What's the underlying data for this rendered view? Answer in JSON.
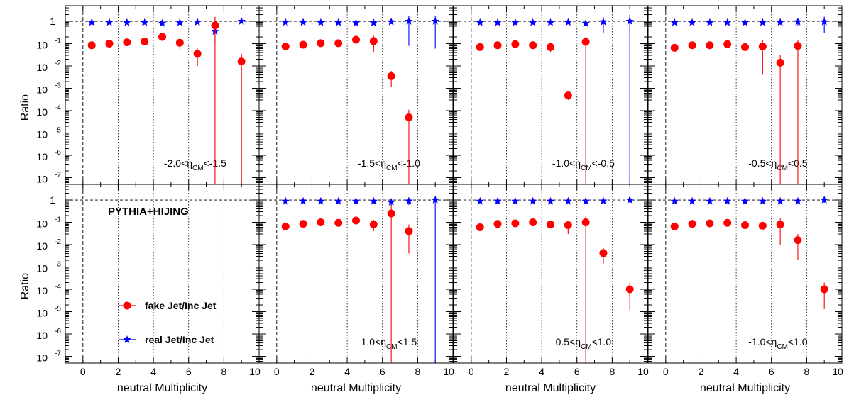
{
  "chart_data": {
    "type": "scatter",
    "figure_label": "PYTHIA+HIJING",
    "ylabel": "Ratio",
    "xlabel": "neutral Multiplicity",
    "xlim": [
      -1,
      10
    ],
    "ylim": [
      5e-08,
      5
    ],
    "yscale": "log",
    "unity_line": 1,
    "x_ticks": [
      0,
      2,
      4,
      6,
      8,
      10
    ],
    "x_tick_labels": [
      "0",
      "2",
      "4",
      "6",
      "8",
      "10"
    ],
    "y_ticks": [
      1,
      0.1,
      0.01,
      0.001,
      0.0001,
      1e-05,
      1e-06,
      1e-07
    ],
    "y_tick_labels": [
      {
        "base": "1",
        "exp": ""
      },
      {
        "base": "10",
        "exp": "-1"
      },
      {
        "base": "10",
        "exp": "-2"
      },
      {
        "base": "10",
        "exp": "-3"
      },
      {
        "base": "10",
        "exp": "-4"
      },
      {
        "base": "10",
        "exp": "-5"
      },
      {
        "base": "10",
        "exp": "-6"
      },
      {
        "base": "10",
        "exp": "-7"
      }
    ],
    "legend": [
      {
        "label": "fake Jet/Inc Jet",
        "color": "#ff0000",
        "marker": "circle"
      },
      {
        "label": "real Jet/Inc Jet",
        "color": "#0000ff",
        "marker": "star"
      }
    ],
    "panels": [
      {
        "label": {
          "pre": "-2.0<η",
          "sub": "CM",
          "post": "<-1.5"
        },
        "fake": [
          {
            "x": 0.5,
            "y": 0.085,
            "lo": 0.07,
            "hi": 0.1
          },
          {
            "x": 1.5,
            "y": 0.1,
            "lo": 0.085,
            "hi": 0.12
          },
          {
            "x": 2.5,
            "y": 0.115,
            "lo": 0.1,
            "hi": 0.135
          },
          {
            "x": 3.5,
            "y": 0.125,
            "lo": 0.105,
            "hi": 0.15
          },
          {
            "x": 4.5,
            "y": 0.2,
            "lo": 0.16,
            "hi": 0.25
          },
          {
            "x": 5.5,
            "y": 0.11,
            "lo": 0.05,
            "hi": 0.17
          },
          {
            "x": 6.5,
            "y": 0.035,
            "lo": 0.01,
            "hi": 0.06
          },
          {
            "x": 7.5,
            "y": 0.65,
            "lo": 5e-08,
            "hi": 1.6
          },
          {
            "x": 9.0,
            "y": 0.016,
            "lo": 5e-08,
            "hi": 0.035
          }
        ],
        "real": [
          {
            "x": 0.5,
            "y": 0.9,
            "lo": 0.75,
            "hi": 1.05
          },
          {
            "x": 1.5,
            "y": 0.9,
            "lo": 0.75,
            "hi": 1.05
          },
          {
            "x": 2.5,
            "y": 0.88,
            "lo": 0.75,
            "hi": 1.02
          },
          {
            "x": 3.5,
            "y": 0.88,
            "lo": 0.75,
            "hi": 1.02
          },
          {
            "x": 4.5,
            "y": 0.82,
            "lo": 0.7,
            "hi": 0.95
          },
          {
            "x": 5.5,
            "y": 0.88,
            "lo": 0.75,
            "hi": 1.02
          },
          {
            "x": 6.5,
            "y": 0.92,
            "lo": 0.78,
            "hi": 1.08
          },
          {
            "x": 7.5,
            "y": 0.35,
            "lo": 0.1,
            "hi": 0.7
          },
          {
            "x": 9.0,
            "y": 1.0,
            "lo": 0.8,
            "hi": 1.3
          }
        ]
      },
      {
        "label": {
          "pre": "-1.5<η",
          "sub": "CM",
          "post": "<-1.0"
        },
        "fake": [
          {
            "x": 0.5,
            "y": 0.075,
            "lo": 0.06,
            "hi": 0.09
          },
          {
            "x": 1.5,
            "y": 0.09,
            "lo": 0.075,
            "hi": 0.11
          },
          {
            "x": 2.5,
            "y": 0.105,
            "lo": 0.09,
            "hi": 0.125
          },
          {
            "x": 3.5,
            "y": 0.105,
            "lo": 0.09,
            "hi": 0.125
          },
          {
            "x": 4.5,
            "y": 0.15,
            "lo": 0.11,
            "hi": 0.19
          },
          {
            "x": 5.5,
            "y": 0.13,
            "lo": 0.04,
            "hi": 0.22
          },
          {
            "x": 6.5,
            "y": 0.0035,
            "lo": 0.0012,
            "hi": 0.006
          },
          {
            "x": 7.5,
            "y": 5e-05,
            "lo": 5e-08,
            "hi": 0.00011
          }
        ],
        "real": [
          {
            "x": 0.5,
            "y": 0.9,
            "lo": 0.75,
            "hi": 1.05
          },
          {
            "x": 1.5,
            "y": 0.9,
            "lo": 0.75,
            "hi": 1.05
          },
          {
            "x": 2.5,
            "y": 0.88,
            "lo": 0.75,
            "hi": 1.02
          },
          {
            "x": 3.5,
            "y": 0.88,
            "lo": 0.75,
            "hi": 1.02
          },
          {
            "x": 4.5,
            "y": 0.85,
            "lo": 0.7,
            "hi": 1.0
          },
          {
            "x": 5.5,
            "y": 0.85,
            "lo": 0.7,
            "hi": 1.0
          },
          {
            "x": 6.5,
            "y": 0.95,
            "lo": 0.75,
            "hi": 1.2
          },
          {
            "x": 7.5,
            "y": 1.0,
            "lo": 0.08,
            "hi": 1.7
          },
          {
            "x": 9.0,
            "y": 1.0,
            "lo": 0.06,
            "hi": 1.8
          }
        ]
      },
      {
        "label": {
          "pre": "-1.0<η",
          "sub": "CM",
          "post": "<-0.5"
        },
        "fake": [
          {
            "x": 0.5,
            "y": 0.07,
            "lo": 0.058,
            "hi": 0.085
          },
          {
            "x": 1.5,
            "y": 0.085,
            "lo": 0.07,
            "hi": 0.1
          },
          {
            "x": 2.5,
            "y": 0.095,
            "lo": 0.08,
            "hi": 0.115
          },
          {
            "x": 3.5,
            "y": 0.085,
            "lo": 0.07,
            "hi": 0.1
          },
          {
            "x": 4.5,
            "y": 0.07,
            "lo": 0.04,
            "hi": 0.1
          },
          {
            "x": 5.5,
            "y": 0.00048,
            "lo": 0.0003,
            "hi": 0.0007
          },
          {
            "x": 6.5,
            "y": 0.12,
            "lo": 5e-08,
            "hi": 0.2
          }
        ],
        "real": [
          {
            "x": 0.5,
            "y": 0.88,
            "lo": 0.75,
            "hi": 1.02
          },
          {
            "x": 1.5,
            "y": 0.88,
            "lo": 0.75,
            "hi": 1.02
          },
          {
            "x": 2.5,
            "y": 0.88,
            "lo": 0.75,
            "hi": 1.02
          },
          {
            "x": 3.5,
            "y": 0.88,
            "lo": 0.75,
            "hi": 1.02
          },
          {
            "x": 4.5,
            "y": 0.88,
            "lo": 0.75,
            "hi": 1.02
          },
          {
            "x": 5.5,
            "y": 0.9,
            "lo": 0.75,
            "hi": 1.05
          },
          {
            "x": 6.5,
            "y": 0.8,
            "lo": 0.65,
            "hi": 0.95
          },
          {
            "x": 7.5,
            "y": 0.95,
            "lo": 0.3,
            "hi": 1.5
          },
          {
            "x": 9.0,
            "y": 1.0,
            "lo": 5e-08,
            "hi": 2.0
          }
        ]
      },
      {
        "label": {
          "pre": "-0.5<η",
          "sub": "CM",
          "post": "<0.5"
        },
        "fake": [
          {
            "x": 0.5,
            "y": 0.065,
            "lo": 0.052,
            "hi": 0.08
          },
          {
            "x": 1.5,
            "y": 0.085,
            "lo": 0.07,
            "hi": 0.1
          },
          {
            "x": 2.5,
            "y": 0.085,
            "lo": 0.07,
            "hi": 0.1
          },
          {
            "x": 3.5,
            "y": 0.095,
            "lo": 0.08,
            "hi": 0.115
          },
          {
            "x": 4.5,
            "y": 0.07,
            "lo": 0.055,
            "hi": 0.09
          },
          {
            "x": 5.5,
            "y": 0.075,
            "lo": 0.004,
            "hi": 0.15
          },
          {
            "x": 6.5,
            "y": 0.014,
            "lo": 5e-08,
            "hi": 0.03
          },
          {
            "x": 7.5,
            "y": 0.08,
            "lo": 5e-08,
            "hi": 0.15
          }
        ],
        "real": [
          {
            "x": 0.5,
            "y": 0.88,
            "lo": 0.75,
            "hi": 1.02
          },
          {
            "x": 1.5,
            "y": 0.88,
            "lo": 0.75,
            "hi": 1.02
          },
          {
            "x": 2.5,
            "y": 0.88,
            "lo": 0.75,
            "hi": 1.02
          },
          {
            "x": 3.5,
            "y": 0.88,
            "lo": 0.75,
            "hi": 1.02
          },
          {
            "x": 4.5,
            "y": 0.88,
            "lo": 0.75,
            "hi": 1.02
          },
          {
            "x": 5.5,
            "y": 0.88,
            "lo": 0.75,
            "hi": 1.02
          },
          {
            "x": 6.5,
            "y": 0.9,
            "lo": 0.7,
            "hi": 1.3
          },
          {
            "x": 7.5,
            "y": 0.95,
            "lo": 0.6,
            "hi": 1.4
          },
          {
            "x": 9.0,
            "y": 0.95,
            "lo": 0.3,
            "hi": 1.6
          }
        ]
      },
      {
        "label": null,
        "fake": [],
        "real": []
      },
      {
        "label": {
          "pre": "1.0<η",
          "sub": "CM",
          "post": "<1.5"
        },
        "fake": [
          {
            "x": 0.5,
            "y": 0.065,
            "lo": 0.052,
            "hi": 0.08
          },
          {
            "x": 1.5,
            "y": 0.085,
            "lo": 0.07,
            "hi": 0.1
          },
          {
            "x": 2.5,
            "y": 0.1,
            "lo": 0.085,
            "hi": 0.12
          },
          {
            "x": 3.5,
            "y": 0.095,
            "lo": 0.08,
            "hi": 0.115
          },
          {
            "x": 4.5,
            "y": 0.12,
            "lo": 0.09,
            "hi": 0.15
          },
          {
            "x": 5.5,
            "y": 0.08,
            "lo": 0.04,
            "hi": 0.13
          },
          {
            "x": 6.5,
            "y": 0.25,
            "lo": 5e-08,
            "hi": 0.6
          },
          {
            "x": 7.5,
            "y": 0.04,
            "lo": 0.004,
            "hi": 0.08
          }
        ],
        "real": [
          {
            "x": 0.5,
            "y": 0.88,
            "lo": 0.75,
            "hi": 1.02
          },
          {
            "x": 1.5,
            "y": 0.88,
            "lo": 0.75,
            "hi": 1.02
          },
          {
            "x": 2.5,
            "y": 0.88,
            "lo": 0.75,
            "hi": 1.02
          },
          {
            "x": 3.5,
            "y": 0.88,
            "lo": 0.75,
            "hi": 1.02
          },
          {
            "x": 4.5,
            "y": 0.88,
            "lo": 0.75,
            "hi": 1.02
          },
          {
            "x": 5.5,
            "y": 0.88,
            "lo": 0.75,
            "hi": 1.02
          },
          {
            "x": 6.5,
            "y": 0.8,
            "lo": 0.55,
            "hi": 1.0
          },
          {
            "x": 7.5,
            "y": 0.9,
            "lo": 0.6,
            "hi": 1.3
          },
          {
            "x": 9.0,
            "y": 1.0,
            "lo": 5e-08,
            "hi": 1.5
          }
        ]
      },
      {
        "label": {
          "pre": "0.5<η",
          "sub": "CM",
          "post": "<1.0"
        },
        "fake": [
          {
            "x": 0.5,
            "y": 0.06,
            "lo": 0.05,
            "hi": 0.072
          },
          {
            "x": 1.5,
            "y": 0.085,
            "lo": 0.07,
            "hi": 0.1
          },
          {
            "x": 2.5,
            "y": 0.09,
            "lo": 0.075,
            "hi": 0.11
          },
          {
            "x": 3.5,
            "y": 0.1,
            "lo": 0.085,
            "hi": 0.12
          },
          {
            "x": 4.5,
            "y": 0.08,
            "lo": 0.065,
            "hi": 0.095
          },
          {
            "x": 5.5,
            "y": 0.075,
            "lo": 0.03,
            "hi": 0.12
          },
          {
            "x": 6.5,
            "y": 0.1,
            "lo": 5e-08,
            "hi": 0.18
          },
          {
            "x": 7.5,
            "y": 0.0042,
            "lo": 0.0013,
            "hi": 0.007
          },
          {
            "x": 9.0,
            "y": 0.0001,
            "lo": 1.2e-05,
            "hi": 0.0002
          }
        ],
        "real": [
          {
            "x": 0.5,
            "y": 0.88,
            "lo": 0.75,
            "hi": 1.02
          },
          {
            "x": 1.5,
            "y": 0.88,
            "lo": 0.75,
            "hi": 1.02
          },
          {
            "x": 2.5,
            "y": 0.88,
            "lo": 0.75,
            "hi": 1.02
          },
          {
            "x": 3.5,
            "y": 0.88,
            "lo": 0.75,
            "hi": 1.02
          },
          {
            "x": 4.5,
            "y": 0.88,
            "lo": 0.75,
            "hi": 1.02
          },
          {
            "x": 5.5,
            "y": 0.88,
            "lo": 0.75,
            "hi": 1.02
          },
          {
            "x": 6.5,
            "y": 0.88,
            "lo": 0.75,
            "hi": 1.02
          },
          {
            "x": 7.5,
            "y": 0.9,
            "lo": 0.75,
            "hi": 1.05
          },
          {
            "x": 9.0,
            "y": 1.0,
            "lo": 0.75,
            "hi": 1.3
          }
        ]
      },
      {
        "label": {
          "pre": "-1.0<η",
          "sub": "CM",
          "post": "<1.0"
        },
        "fake": [
          {
            "x": 0.5,
            "y": 0.065,
            "lo": 0.052,
            "hi": 0.08
          },
          {
            "x": 1.5,
            "y": 0.085,
            "lo": 0.07,
            "hi": 0.1
          },
          {
            "x": 2.5,
            "y": 0.09,
            "lo": 0.075,
            "hi": 0.11
          },
          {
            "x": 3.5,
            "y": 0.095,
            "lo": 0.08,
            "hi": 0.115
          },
          {
            "x": 4.5,
            "y": 0.075,
            "lo": 0.06,
            "hi": 0.09
          },
          {
            "x": 5.5,
            "y": 0.07,
            "lo": 0.05,
            "hi": 0.09
          },
          {
            "x": 6.5,
            "y": 0.08,
            "lo": 0.01,
            "hi": 0.15
          },
          {
            "x": 7.5,
            "y": 0.016,
            "lo": 0.002,
            "hi": 0.03
          },
          {
            "x": 9.0,
            "y": 0.0001,
            "lo": 1.3e-05,
            "hi": 0.0002
          }
        ],
        "real": [
          {
            "x": 0.5,
            "y": 0.88,
            "lo": 0.75,
            "hi": 1.02
          },
          {
            "x": 1.5,
            "y": 0.88,
            "lo": 0.75,
            "hi": 1.02
          },
          {
            "x": 2.5,
            "y": 0.88,
            "lo": 0.75,
            "hi": 1.02
          },
          {
            "x": 3.5,
            "y": 0.88,
            "lo": 0.75,
            "hi": 1.02
          },
          {
            "x": 4.5,
            "y": 0.88,
            "lo": 0.75,
            "hi": 1.02
          },
          {
            "x": 5.5,
            "y": 0.88,
            "lo": 0.75,
            "hi": 1.02
          },
          {
            "x": 6.5,
            "y": 0.88,
            "lo": 0.75,
            "hi": 1.02
          },
          {
            "x": 7.5,
            "y": 0.88,
            "lo": 0.75,
            "hi": 1.02
          },
          {
            "x": 9.0,
            "y": 1.0,
            "lo": 0.75,
            "hi": 1.3
          }
        ]
      }
    ]
  }
}
